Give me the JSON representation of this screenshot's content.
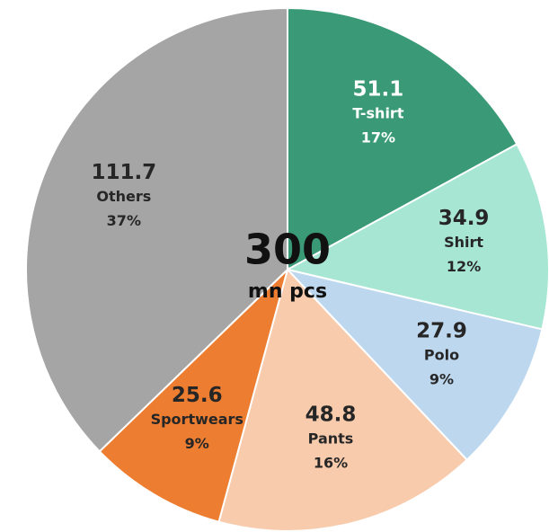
{
  "chart_data": {
    "type": "pie",
    "categories": [
      "T-shirt",
      "Shirt",
      "Polo",
      "Pants",
      "Sportwears",
      "Others"
    ],
    "values": [
      51.1,
      34.9,
      27.9,
      48.8,
      25.6,
      111.7
    ],
    "percent_labels": [
      "17%",
      "12%",
      "9%",
      "16%",
      "9%",
      "37%"
    ],
    "colors": [
      "#3a9a78",
      "#a8e6d4",
      "#bdd7ee",
      "#f8cbad",
      "#ed7d31",
      "#a5a5a5"
    ],
    "label_colors": [
      "#ffffff",
      "#262626",
      "#262626",
      "#262626",
      "#262626",
      "#262626"
    ],
    "center_value": 300,
    "center_unit": "mn pcs"
  }
}
